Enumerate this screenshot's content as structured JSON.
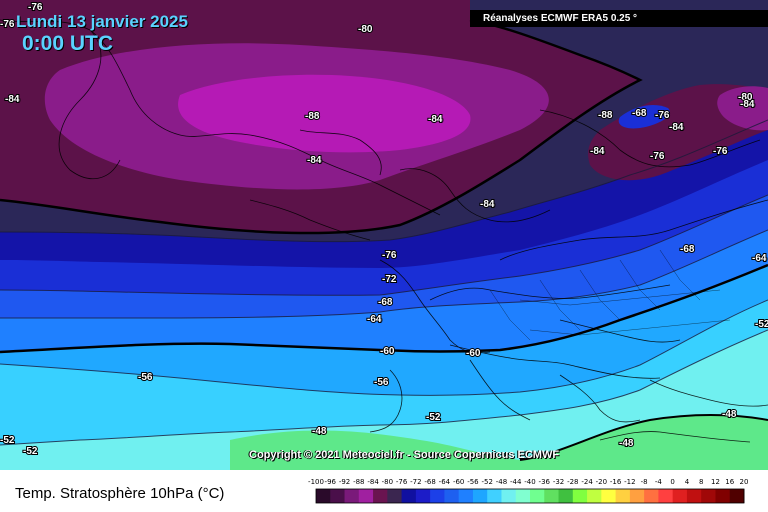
{
  "header": {
    "date": "Lundi 13 janvier 2025",
    "time": "0:00 UTC",
    "source": "Réanalyses ECMWF ERA5 0.25 °"
  },
  "copyright": "Copyright © 2021 Meteociel.fr - Source Copernicus ECMWF",
  "footer": {
    "title": "Temp. Stratosphère 10hPa (°C)"
  },
  "legend": {
    "ticks": [
      "-100",
      "-96",
      "-92",
      "-88",
      "-84",
      "-80",
      "-76",
      "-72",
      "-68",
      "-64",
      "-60",
      "-56",
      "-52",
      "-48",
      "-44",
      "-40",
      "-36",
      "-32",
      "-28",
      "-24",
      "-20",
      "-16",
      "-12",
      "-8",
      "-4",
      "0",
      "4",
      "8",
      "12",
      "16",
      "20"
    ],
    "colors": [
      "#2a0a2a",
      "#4a0f4a",
      "#7a1a7a",
      "#a020a0",
      "#6a1450",
      "#3b2650",
      "#1010a0",
      "#1c1cc8",
      "#1c40e8",
      "#1e60f0",
      "#1f80ff",
      "#1ea6ff",
      "#40d0ff",
      "#70f0f0",
      "#80ffd0",
      "#70ff90",
      "#60e060",
      "#40c040",
      "#80ff40",
      "#c0ff40",
      "#ffff40",
      "#ffd040",
      "#ffa040",
      "#ff7040",
      "#ff4040",
      "#e02020",
      "#c01010",
      "#a00808",
      "#800000",
      "#500000"
    ]
  },
  "map_labels": [
    "-76",
    "-76",
    "-80",
    "-84",
    "-88",
    "-84",
    "-84",
    "-88",
    "-68",
    "-76",
    "-84",
    "-80",
    "-84",
    "-84",
    "-76",
    "-76",
    "-84",
    "-76",
    "-68",
    "-72",
    "-64",
    "-68",
    "-64",
    "-60",
    "-60",
    "-56",
    "-56",
    "-52",
    "-52",
    "-48",
    "-52",
    "-48",
    "-48",
    "-52"
  ],
  "colors": {
    "deep_purple": "#5c1249",
    "purple_core": "#a010a8",
    "magenta": "#b51ab5",
    "navy": "#2b2758",
    "blue_72": "#1414a8",
    "blue_68": "#1a2fd6",
    "blue_64": "#1f58f0",
    "blue_60": "#1f80ff",
    "sky_56": "#20a8ff",
    "cyan_52": "#38d0ff",
    "aqua_48": "#70f0f0",
    "green_44": "#7affc0",
    "green_40": "#5ee88a"
  }
}
